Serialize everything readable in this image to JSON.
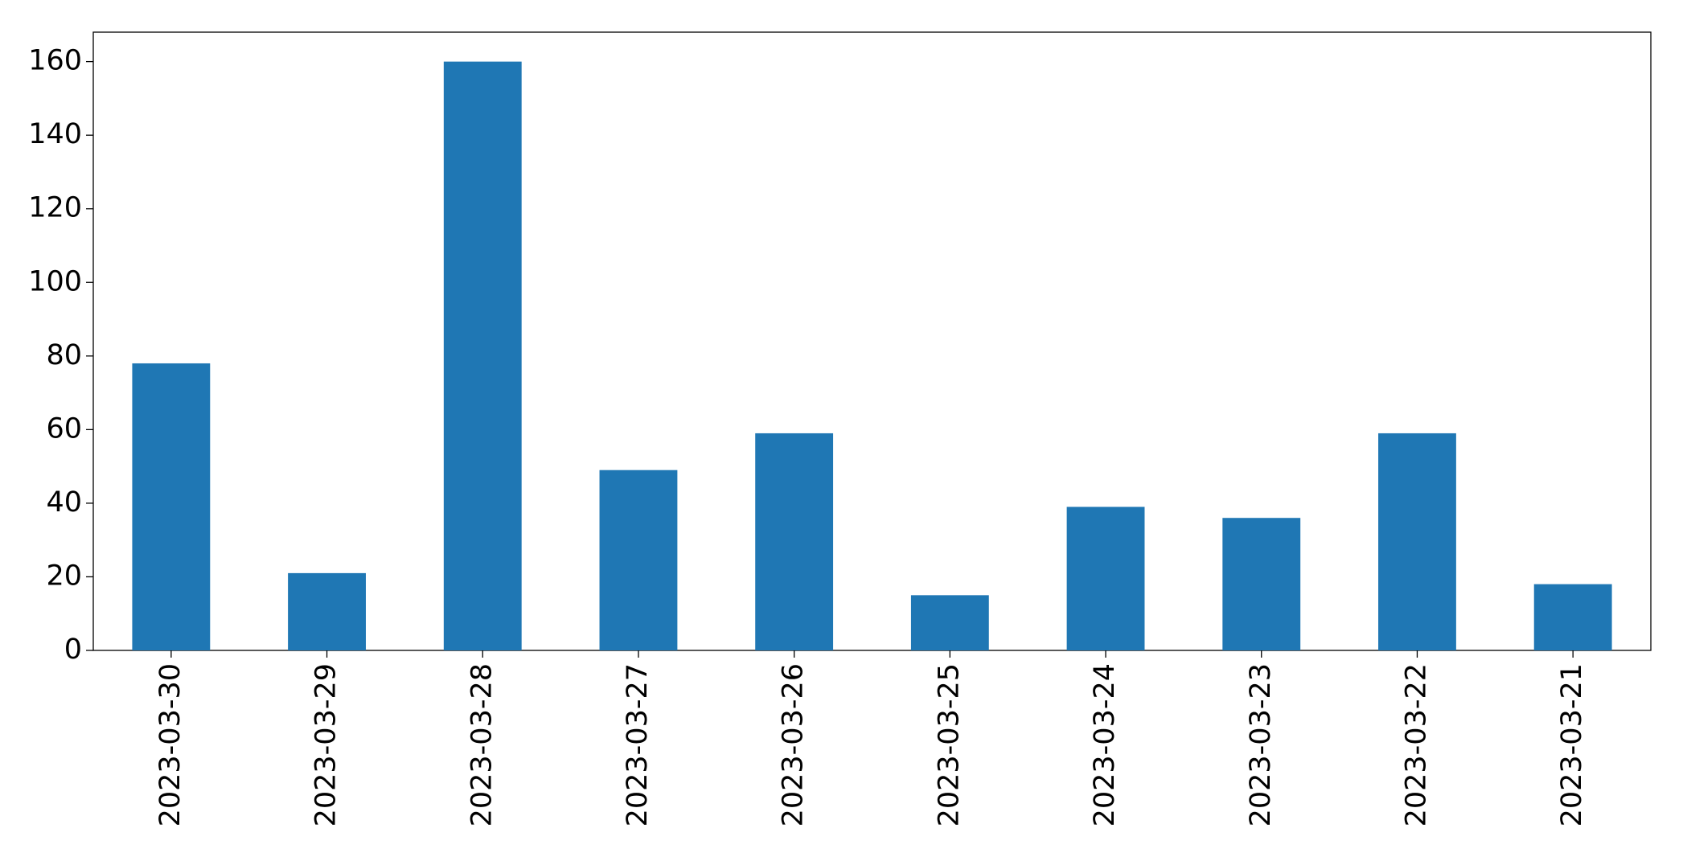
{
  "chart_data": {
    "type": "bar",
    "categories": [
      "2023-03-30",
      "2023-03-29",
      "2023-03-28",
      "2023-03-27",
      "2023-03-26",
      "2023-03-25",
      "2023-03-24",
      "2023-03-23",
      "2023-03-22",
      "2023-03-21"
    ],
    "values": [
      78,
      21,
      160,
      49,
      59,
      15,
      39,
      36,
      59,
      18
    ],
    "color": "#1f77b4",
    "ylim": [
      0,
      168
    ],
    "yticks": [
      0,
      20,
      40,
      60,
      80,
      100,
      120,
      140,
      160
    ],
    "grid": false
  }
}
